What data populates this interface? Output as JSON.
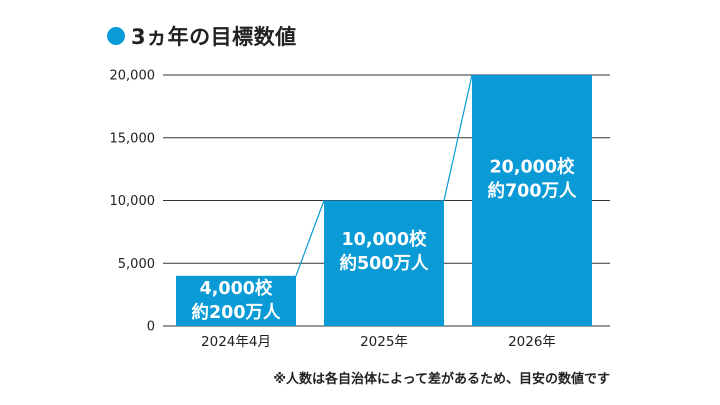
{
  "header": {
    "title": "3ヵ年の目標数値"
  },
  "note": "※人数は各自治体によって差があるため、目安の数値です",
  "colors": {
    "bar": "#0a9ad6",
    "accent_dot": "#0a9ad6",
    "connector": "#0a9ad6",
    "grid": "#333333"
  },
  "chart_data": {
    "type": "bar",
    "title": "3ヵ年の目標数値",
    "xlabel": "",
    "ylabel": "",
    "categories": [
      "2024年4月",
      "2025年",
      "2026年"
    ],
    "values": [
      4000,
      10000,
      20000
    ],
    "data_labels": [
      [
        "4,000校",
        "約200万人"
      ],
      [
        "10,000校",
        "約500万人"
      ],
      [
        "20,000校",
        "約700万人"
      ]
    ],
    "ylim": [
      0,
      20000
    ],
    "yticks": [
      0,
      5000,
      10000,
      15000,
      20000
    ],
    "ytick_labels": [
      "0",
      "5,000",
      "10,000",
      "15,000",
      "20,000"
    ],
    "grid": true,
    "connectors": true
  }
}
